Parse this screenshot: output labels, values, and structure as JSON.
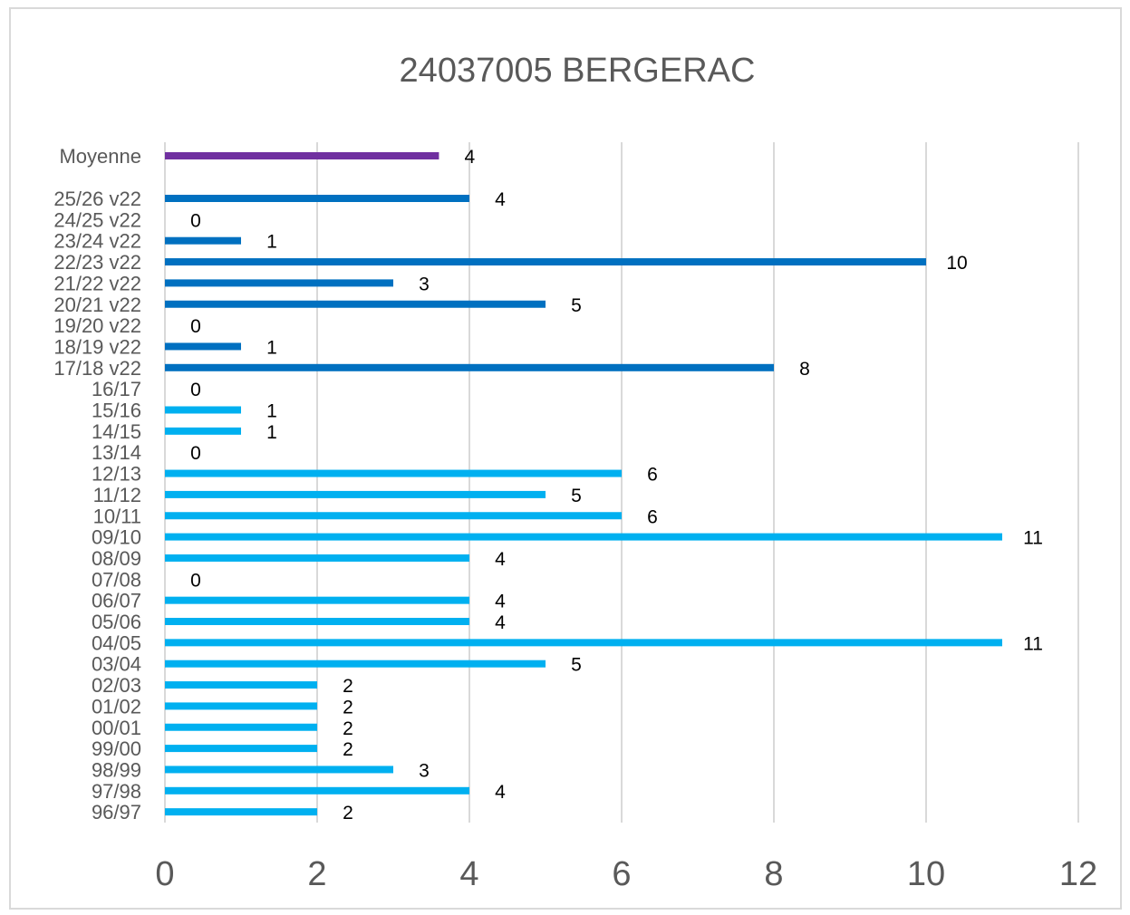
{
  "chart_data": {
    "type": "bar",
    "orientation": "horizontal",
    "title": "24037005 BERGERAC",
    "xlabel": "",
    "ylabel": "",
    "xlim": [
      0,
      12
    ],
    "x_ticks": [
      "0",
      "2",
      "4",
      "6",
      "8",
      "10",
      "12"
    ],
    "grid": "vertical",
    "legend": "none",
    "categories": [
      "Moyenne",
      "25/26 v22",
      "24/25 v22",
      "23/24 v22",
      "22/23 v22",
      "21/22 v22",
      "20/21 v22",
      "19/20 v22",
      "18/19 v22",
      "17/18 v22",
      "16/17",
      "15/16",
      "14/15",
      "13/14",
      "12/13",
      "11/12",
      "10/11",
      "09/10",
      "08/09",
      "07/08",
      "06/07",
      "05/06",
      "04/05",
      "03/04",
      "02/03",
      "01/02",
      "00/01",
      "99/00",
      "98/99",
      "97/98",
      "96/97"
    ],
    "values": [
      3.6,
      4,
      0,
      1,
      10,
      3,
      5,
      0,
      1,
      8,
      0,
      1,
      1,
      0,
      6,
      5,
      6,
      11,
      4,
      0,
      4,
      4,
      11,
      5,
      2,
      2,
      2,
      2,
      3,
      4,
      2
    ],
    "value_labels": [
      "4",
      "4",
      "0",
      "1",
      "10",
      "3",
      "5",
      "0",
      "1",
      "8",
      "0",
      "1",
      "1",
      "0",
      "6",
      "5",
      "6",
      "11",
      "4",
      "0",
      "4",
      "4",
      "11",
      "5",
      "2",
      "2",
      "2",
      "2",
      "3",
      "4",
      "2"
    ],
    "colors": {
      "moyenne": "#7030a0",
      "v22": "#0070c0",
      "default": "#00b0f0",
      "grid": "#d9d9d9",
      "text": "#595959"
    }
  }
}
